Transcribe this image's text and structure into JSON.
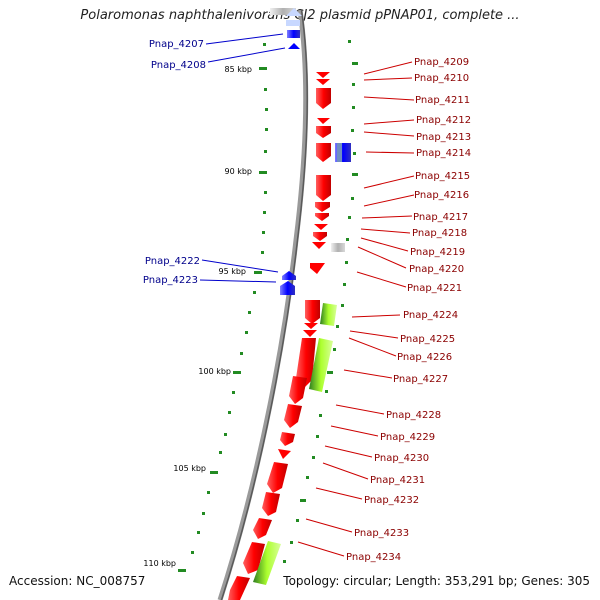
{
  "title": "Polaromonas naphthalenivorans CJ2 plasmid pPNAP01, complete ...",
  "accession": "Accession: NC_008757",
  "summary": "Topology: circular; Length: 353,291 bp; Genes: 305",
  "colors": {
    "forward": "#ff0000",
    "reverse": "#0000ff",
    "backbone": "#808080",
    "gc_tick": "#228b22",
    "highlight": "#adff2f"
  },
  "scale_labels": [
    "85 kbp",
    "90 kbp",
    "95 kbp",
    "100 kbp",
    "105 kbp",
    "110 kbp"
  ],
  "genes_right": [
    "Pnap_4209",
    "Pnap_4210",
    "Pnap_4211",
    "Pnap_4212",
    "Pnap_4213",
    "Pnap_4214",
    "Pnap_4215",
    "Pnap_4216",
    "Pnap_4217",
    "Pnap_4218",
    "Pnap_4219",
    "Pnap_4220",
    "Pnap_4221",
    "Pnap_4224",
    "Pnap_4225",
    "Pnap_4226",
    "Pnap_4227",
    "Pnap_4228",
    "Pnap_4229",
    "Pnap_4230",
    "Pnap_4231",
    "Pnap_4232",
    "Pnap_4233",
    "Pnap_4234"
  ],
  "genes_left": [
    "Pnap_4207",
    "Pnap_4208",
    "Pnap_4222",
    "Pnap_4223"
  ]
}
